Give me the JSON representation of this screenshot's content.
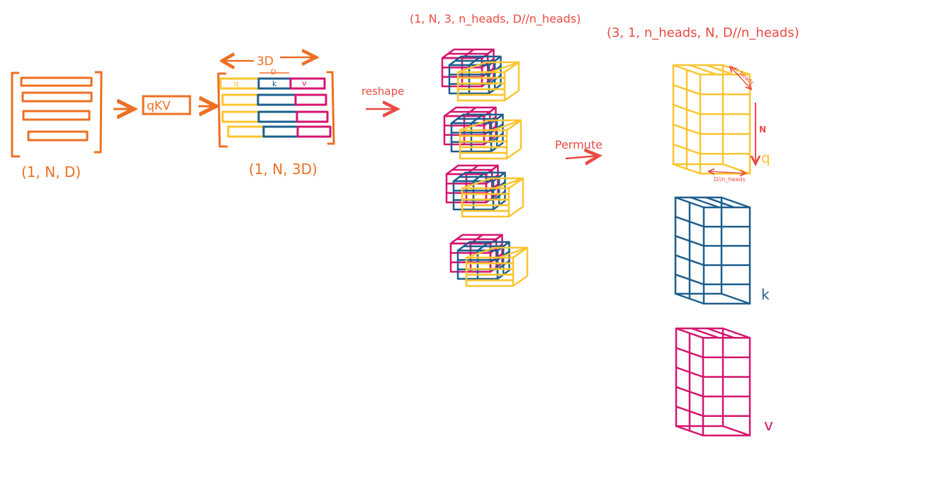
{
  "colors": {
    "orange": "#ee6f22",
    "red": "#ea4a43",
    "yellow": "#fbc52f",
    "blue": "#1c5f8e",
    "magenta": "#d6146f"
  },
  "input": {
    "shape_label": "(1, N, D)"
  },
  "qkv_layer": {
    "label": "qKV"
  },
  "qkv_output": {
    "width_label": "3D",
    "segment_label": "D",
    "q_label": "q",
    "k_label": "k",
    "v_label": "v",
    "shape_label": "(1, N, 3D)"
  },
  "reshape": {
    "label": "reshape",
    "shape_label": "(1, N, 3, n_heads, D//n_heads)"
  },
  "permute": {
    "label": "Permute",
    "shape_label": "(3, 1, n_heads, N, D//n_heads)"
  },
  "q_tensor": {
    "depth_label": "n_heads",
    "height_label": "N",
    "width_label": "D//n_heads",
    "name": "q"
  },
  "k_tensor": {
    "name": "k"
  },
  "v_tensor": {
    "name": "v"
  }
}
